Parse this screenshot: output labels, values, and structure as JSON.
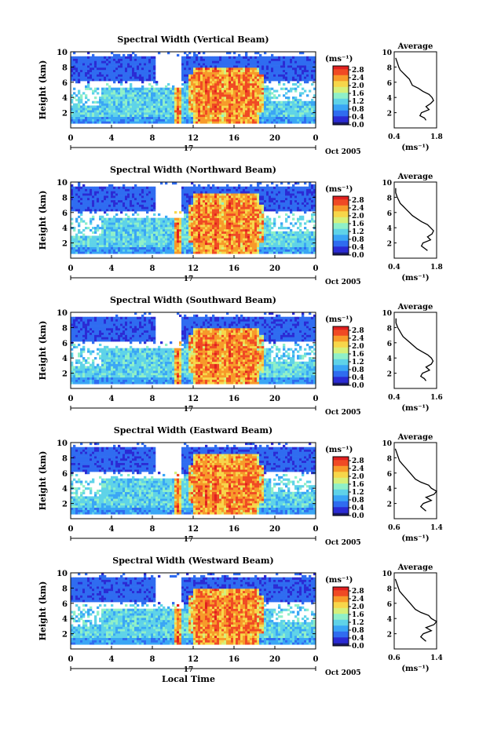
{
  "figure": {
    "date_label": "Oct 2005",
    "xlabel": "Local Time",
    "colors": {
      "colormap": [
        "#1a1a66",
        "#2b2bd4",
        "#2f6cf0",
        "#3aa6f5",
        "#5fd3e8",
        "#8ff0c8",
        "#d6f07a",
        "#f7d64a",
        "#f79a2a",
        "#f04a24",
        "#e02020"
      ]
    }
  },
  "chart_data": [
    {
      "type": "heatmap",
      "title": "Spectral Width (Vertical Beam)",
      "ylabel": "Height (km)",
      "xlim": [
        0,
        24
      ],
      "ylim": [
        0,
        10
      ],
      "xticks": [
        "0",
        "4",
        "8",
        "12",
        "16",
        "20",
        "0"
      ],
      "xticks_values": [
        0,
        4,
        8,
        12,
        16,
        20,
        24
      ],
      "yticks": [
        "2",
        "4",
        "6",
        "8",
        "10"
      ],
      "day_label": "17",
      "colorbar": {
        "unit": "(ms⁻¹)",
        "ticks": [
          "0.0",
          "0.4",
          "0.8",
          "1.2",
          "1.6",
          "2.0",
          "2.4",
          "2.8"
        ],
        "range": [
          0,
          3.0
        ]
      },
      "profile": {
        "title": "Average",
        "xlabel": "(ms⁻¹)",
        "xlim": [
          0.4,
          1.8
        ],
        "xticks": [
          "0.4",
          "1.8"
        ],
        "yticks": [
          "2",
          "4",
          "6",
          "8",
          "10"
        ],
        "x": [
          1.45,
          1.4,
          1.25,
          1.3,
          1.55,
          1.45,
          1.6,
          1.7,
          1.65,
          1.55,
          1.35,
          1.2,
          1.0,
          0.95,
          0.9,
          0.8,
          0.7,
          0.6,
          0.55,
          0.5,
          0.45
        ],
        "y": [
          1.0,
          1.3,
          1.6,
          2.0,
          2.4,
          2.8,
          3.2,
          3.6,
          4.0,
          4.4,
          4.8,
          5.2,
          5.6,
          6.0,
          6.4,
          6.8,
          7.2,
          7.6,
          8.0,
          8.6,
          9.2
        ]
      }
    },
    {
      "type": "heatmap",
      "title": "Spectral Width (Northward Beam)",
      "ylabel": "Height (km)",
      "xlim": [
        0,
        24
      ],
      "ylim": [
        0,
        10
      ],
      "xticks": [
        "0",
        "4",
        "8",
        "12",
        "16",
        "20",
        "0"
      ],
      "xticks_values": [
        0,
        4,
        8,
        12,
        16,
        20,
        24
      ],
      "yticks": [
        "2",
        "4",
        "6",
        "8",
        "10"
      ],
      "day_label": "17",
      "colorbar": {
        "unit": "(ms⁻¹)",
        "ticks": [
          "0.0",
          "0.4",
          "0.8",
          "1.2",
          "1.6",
          "2.0",
          "2.4",
          "2.8"
        ],
        "range": [
          0,
          3.0
        ]
      },
      "profile": {
        "title": "Average",
        "xlabel": "(ms⁻¹)",
        "xlim": [
          0.4,
          1.8
        ],
        "xticks": [
          "0.4",
          "1.8"
        ],
        "yticks": [
          "2",
          "4",
          "6",
          "8",
          "10"
        ],
        "x": [
          1.5,
          1.4,
          1.3,
          1.35,
          1.6,
          1.5,
          1.65,
          1.7,
          1.6,
          1.5,
          1.3,
          1.15,
          1.0,
          0.9,
          0.8,
          0.7,
          0.6,
          0.55,
          0.5,
          0.45,
          0.45
        ],
        "y": [
          1.0,
          1.3,
          1.6,
          2.0,
          2.4,
          2.8,
          3.2,
          3.6,
          4.0,
          4.4,
          4.8,
          5.2,
          5.6,
          6.0,
          6.4,
          6.8,
          7.2,
          7.6,
          8.0,
          8.6,
          9.2
        ]
      }
    },
    {
      "type": "heatmap",
      "title": "Spectral Width (Southward Beam)",
      "ylabel": "Height (km)",
      "xlim": [
        0,
        24
      ],
      "ylim": [
        0,
        10
      ],
      "xticks": [
        "0",
        "4",
        "8",
        "12",
        "16",
        "20",
        "0"
      ],
      "xticks_values": [
        0,
        4,
        8,
        12,
        16,
        20,
        24
      ],
      "yticks": [
        "2",
        "4",
        "6",
        "8",
        "10"
      ],
      "day_label": "17",
      "colorbar": {
        "unit": "(ms⁻¹)",
        "ticks": [
          "0.0",
          "0.4",
          "0.8",
          "1.2",
          "1.6",
          "2.0",
          "2.4",
          "2.8"
        ],
        "range": [
          0,
          3.0
        ]
      },
      "profile": {
        "title": "Average",
        "xlabel": "(ms⁻¹)",
        "xlim": [
          0.4,
          1.6
        ],
        "xticks": [
          "0.4",
          "1.6"
        ],
        "yticks": [
          "2",
          "4",
          "6",
          "8",
          "10"
        ],
        "x": [
          1.3,
          1.25,
          1.15,
          1.2,
          1.4,
          1.3,
          1.45,
          1.5,
          1.45,
          1.35,
          1.2,
          1.05,
          0.95,
          0.85,
          0.75,
          0.65,
          0.6,
          0.55,
          0.5,
          0.45,
          0.45
        ],
        "y": [
          1.0,
          1.3,
          1.6,
          2.0,
          2.4,
          2.8,
          3.2,
          3.6,
          4.0,
          4.4,
          4.8,
          5.2,
          5.6,
          6.0,
          6.4,
          6.8,
          7.2,
          7.6,
          8.0,
          8.6,
          9.2
        ]
      }
    },
    {
      "type": "heatmap",
      "title": "Spectral Width (Eastward Beam)",
      "ylabel": "Height (km)",
      "xlim": [
        0,
        24
      ],
      "ylim": [
        0,
        10
      ],
      "xticks": [
        "0",
        "4",
        "8",
        "12",
        "16",
        "20",
        "0"
      ],
      "xticks_values": [
        0,
        4,
        8,
        12,
        16,
        20,
        24
      ],
      "yticks": [
        "2",
        "4",
        "6",
        "8",
        "10"
      ],
      "day_label": "17",
      "colorbar": {
        "unit": "(ms⁻¹)",
        "ticks": [
          "0.0",
          "0.4",
          "0.8",
          "1.2",
          "1.6",
          "2.0",
          "2.4",
          "2.8"
        ],
        "range": [
          0,
          3.0
        ]
      },
      "profile": {
        "title": "Average",
        "xlabel": "(ms⁻¹)",
        "xlim": [
          0.6,
          1.4
        ],
        "xticks": [
          "0.6",
          "1.4"
        ],
        "yticks": [
          "2",
          "4",
          "6",
          "8",
          "10"
        ],
        "x": [
          1.2,
          1.15,
          1.1,
          1.15,
          1.3,
          1.2,
          1.35,
          1.4,
          1.3,
          1.25,
          1.1,
          1.0,
          0.95,
          0.9,
          0.85,
          0.8,
          0.75,
          0.7,
          0.68,
          0.65,
          0.62
        ],
        "y": [
          1.0,
          1.3,
          1.6,
          2.0,
          2.4,
          2.8,
          3.2,
          3.6,
          4.0,
          4.4,
          4.8,
          5.2,
          5.6,
          6.0,
          6.4,
          6.8,
          7.2,
          7.6,
          8.0,
          8.6,
          9.2
        ]
      }
    },
    {
      "type": "heatmap",
      "title": "Spectral Width (Westward Beam)",
      "ylabel": "Height (km)",
      "xlim": [
        0,
        24
      ],
      "ylim": [
        0,
        10
      ],
      "xticks": [
        "0",
        "4",
        "8",
        "12",
        "16",
        "20",
        "0"
      ],
      "xticks_values": [
        0,
        4,
        8,
        12,
        16,
        20,
        24
      ],
      "yticks": [
        "2",
        "4",
        "6",
        "8",
        "10"
      ],
      "day_label": "17",
      "colorbar": {
        "unit": "(ms⁻¹)",
        "ticks": [
          "0.0",
          "0.4",
          "0.8",
          "1.2",
          "1.6",
          "2.0",
          "2.4",
          "2.8"
        ],
        "range": [
          0,
          3.0
        ]
      },
      "profile": {
        "title": "Average",
        "xlabel": "(ms⁻¹)",
        "xlim": [
          0.6,
          1.4
        ],
        "xticks": [
          "0.6",
          "1.4"
        ],
        "yticks": [
          "2",
          "4",
          "6",
          "8",
          "10"
        ],
        "x": [
          1.2,
          1.15,
          1.1,
          1.15,
          1.3,
          1.2,
          1.35,
          1.4,
          1.3,
          1.25,
          1.1,
          1.0,
          0.95,
          0.9,
          0.85,
          0.8,
          0.75,
          0.7,
          0.68,
          0.65,
          0.62
        ],
        "y": [
          1.0,
          1.3,
          1.6,
          2.0,
          2.4,
          2.8,
          3.2,
          3.6,
          4.0,
          4.4,
          4.8,
          5.2,
          5.6,
          6.0,
          6.4,
          6.8,
          7.2,
          7.6,
          8.0,
          8.6,
          9.2
        ]
      }
    }
  ]
}
